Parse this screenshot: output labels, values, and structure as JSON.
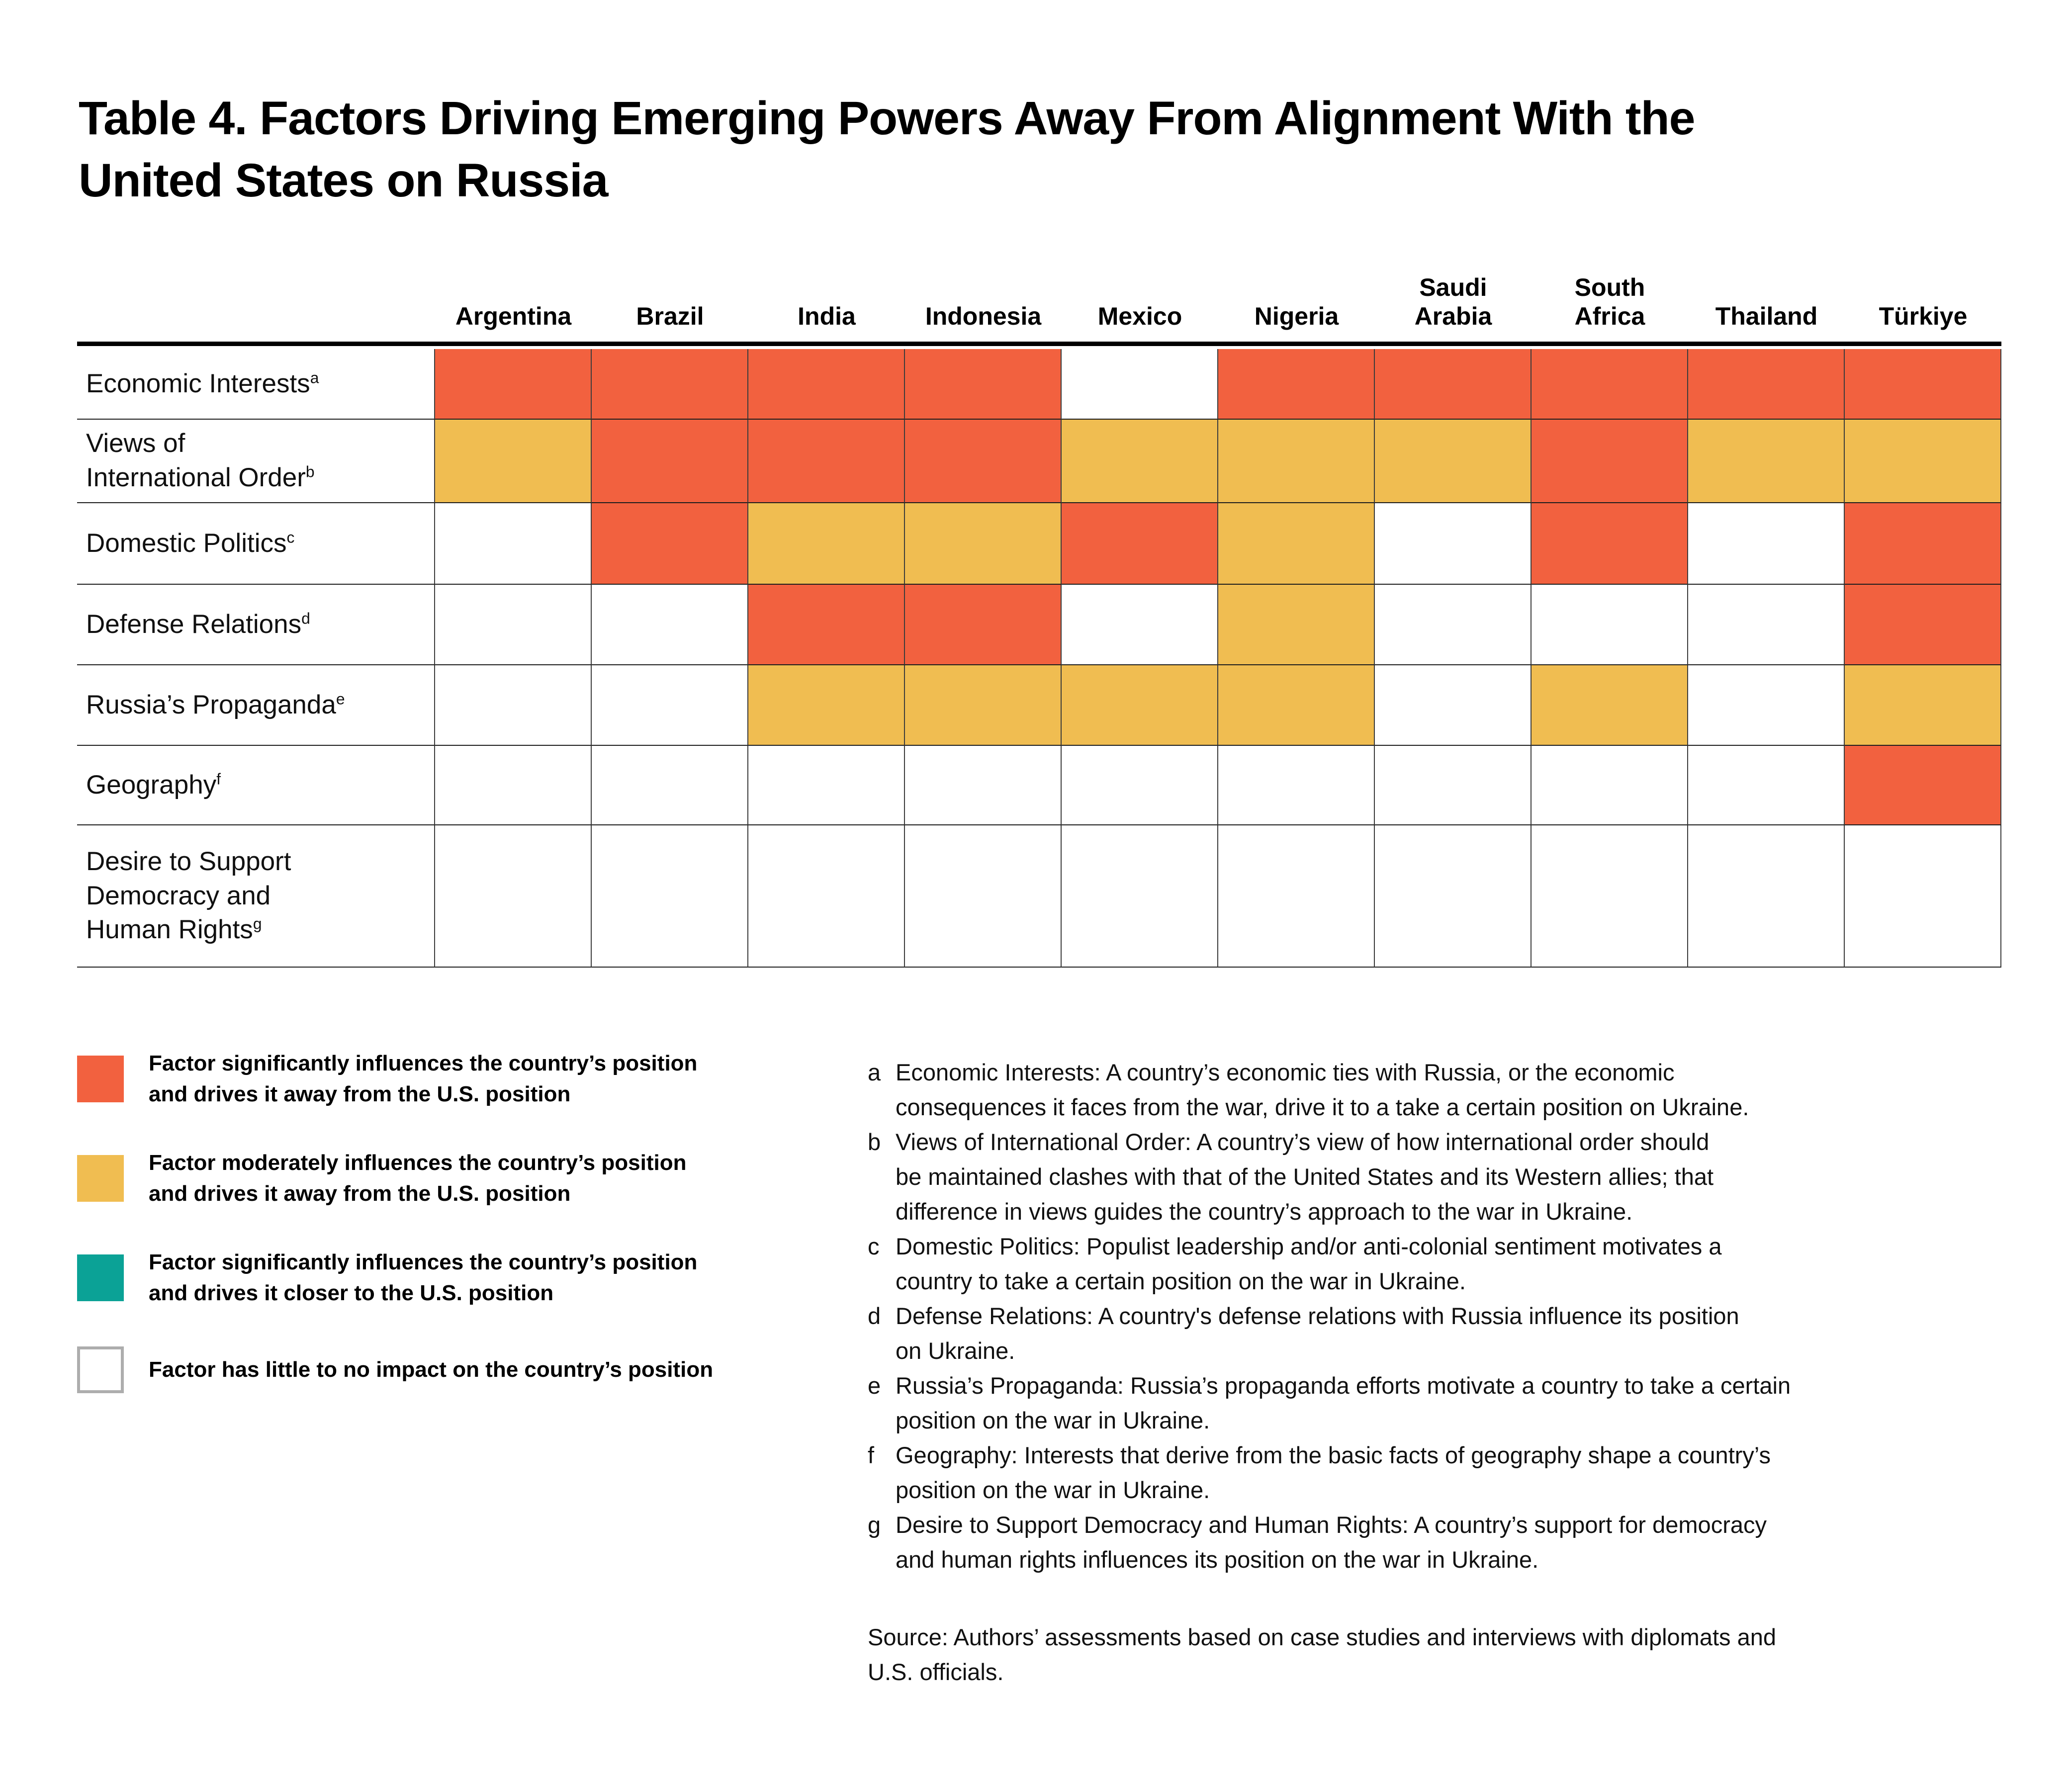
{
  "title": "Table 4. Factors Driving Emerging Powers Away From Alignment With the\nUnited States on Russia",
  "colors": {
    "significant_away": "#F2613F",
    "moderate_away": "#F0BD51",
    "significant_closer": "#0BA296",
    "no_impact": "#FFFFFF",
    "grid_line": "#3c3c3c",
    "header_rule": "#000000",
    "no_impact_swatch_border": "#ADADAD"
  },
  "chart_data": {
    "type": "heatmap",
    "title": "Table 4. Factors Driving Emerging Powers Away From Alignment With the United States on Russia",
    "columns": [
      "Argentina",
      "Brazil",
      "India",
      "Indonesia",
      "Mexico",
      "Nigeria",
      "Saudi Arabia",
      "South Africa",
      "Thailand",
      "Türkiye"
    ],
    "rows": [
      "Economic Interests",
      "Views of International Order",
      "Domestic Politics",
      "Defense Relations",
      "Russia’s Propaganda",
      "Geography",
      "Desire to Support Democracy and Human Rights"
    ],
    "values": [
      [
        2,
        2,
        2,
        2,
        0,
        2,
        2,
        2,
        2,
        2
      ],
      [
        1,
        2,
        2,
        2,
        1,
        1,
        1,
        2,
        1,
        1
      ],
      [
        0,
        2,
        1,
        1,
        2,
        1,
        0,
        2,
        0,
        2
      ],
      [
        0,
        0,
        2,
        2,
        0,
        1,
        0,
        0,
        0,
        2
      ],
      [
        0,
        0,
        1,
        1,
        1,
        1,
        0,
        1,
        0,
        1
      ],
      [
        0,
        0,
        0,
        0,
        0,
        0,
        0,
        0,
        0,
        2
      ],
      [
        0,
        0,
        0,
        0,
        0,
        0,
        0,
        0,
        0,
        0
      ]
    ],
    "value_meanings": {
      "2": "Factor significantly influences the country’s position and drives it away from the U.S. position",
      "1": "Factor moderately influences the country’s position and drives it away from the U.S. position",
      "-2": "Factor significantly influences the country’s position and drives it closer to the U.S. position",
      "0": "Factor has little to no impact on the country’s position"
    },
    "legend_position": "bottom-left",
    "grid": true
  },
  "table": {
    "column_labels": [
      "Argentina",
      "Brazil",
      "India",
      "Indonesia",
      "Mexico",
      "Nigeria",
      "Saudi\nArabia",
      "South\nAfrica",
      "Thailand",
      "Türkiye"
    ],
    "row_labels": [
      {
        "text": "Economic Interests",
        "sup": "a"
      },
      {
        "text": "Views of\nInternational Order",
        "sup": "b"
      },
      {
        "text": "Domestic Politics",
        "sup": "c"
      },
      {
        "text": "Defense Relations",
        "sup": "d"
      },
      {
        "text": "Russia’s Propaganda",
        "sup": "e"
      },
      {
        "text": "Geography",
        "sup": "f"
      },
      {
        "text": "Desire to Support\nDemocracy and\nHuman Rights",
        "sup": "g"
      }
    ]
  },
  "legend": [
    {
      "key": "significant-away",
      "color": "#F2613F",
      "label": "Factor significantly influences the country’s position\nand drives it away from the U.S. position"
    },
    {
      "key": "moderate-away",
      "color": "#F0BD51",
      "label": "Factor moderately influences the country’s position\nand drives it away from the U.S. position"
    },
    {
      "key": "significant-closer",
      "color": "#0BA296",
      "label": "Factor significantly influences the country’s position\nand drives it closer to the U.S. position"
    },
    {
      "key": "no-impact",
      "color": "#FFFFFF",
      "label": "Factor has little to no impact on the country’s position"
    }
  ],
  "footnotes": [
    {
      "marker": "a",
      "text": "Economic Interests: A country’s economic ties with Russia, or the economic\nconsequences it faces from the war, drive it to a take a certain position on Ukraine."
    },
    {
      "marker": "b",
      "text": "Views of International Order: A country’s view of how international order should\nbe maintained clashes with that of the United States and its Western allies; that\ndifference in views guides the country’s approach to the war in Ukraine."
    },
    {
      "marker": "c",
      "text": "Domestic Politics: Populist leadership and/or anti-colonial sentiment motivates a\ncountry to take a certain position on the war in Ukraine."
    },
    {
      "marker": "d",
      "text": "Defense Relations: A country's defense relations with Russia influence its position\non Ukraine."
    },
    {
      "marker": "e",
      "text": "Russia’s Propaganda: Russia’s propaganda efforts motivate a country to take a certain\nposition on the war in Ukraine."
    },
    {
      "marker": "f",
      "text": "Geography: Interests that derive from the basic facts of geography shape a country’s\nposition on the war in Ukraine."
    },
    {
      "marker": "g",
      "text": "Desire to Support Democracy and Human Rights: A country’s support for democracy\nand human rights influences its position on the war in Ukraine."
    }
  ],
  "source": "Source: Authors’ assessments based on case studies and interviews with diplomats and\nU.S. officials."
}
